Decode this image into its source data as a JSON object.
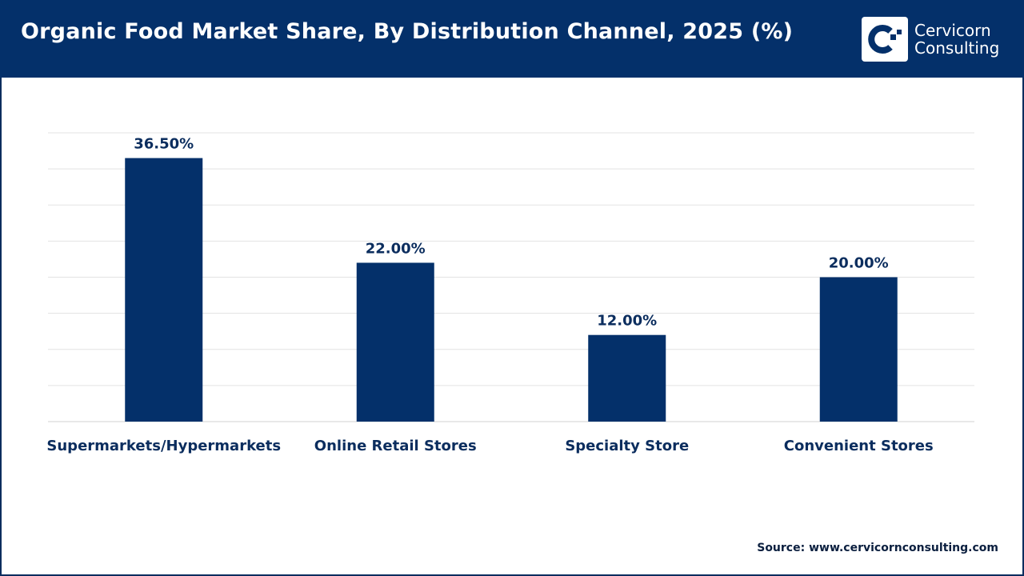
{
  "header": {
    "title": "Organic Food Market Share, By Distribution Channel, 2025 (%)"
  },
  "logo": {
    "line1": "Cervicorn",
    "line2": "Consulting"
  },
  "source": "Source: www.cervicornconsulting.com",
  "colors": {
    "header": "#04306a",
    "bar": "#04306a",
    "label": "#0b2d5e"
  },
  "chart_data": {
    "type": "bar",
    "title": "Organic Food Market Share, By Distribution Channel, 2025 (%)",
    "categories": [
      "Supermarkets/Hypermarkets",
      "Online Retail Stores",
      "Specialty Store",
      "Convenient Stores"
    ],
    "values": [
      36.5,
      22.0,
      12.0,
      20.0
    ],
    "data_labels": [
      "36.50%",
      "22.00%",
      "12.00%",
      "20.00%"
    ],
    "ylim": [
      0,
      40
    ],
    "grid": true,
    "xlabel": "",
    "ylabel": ""
  }
}
